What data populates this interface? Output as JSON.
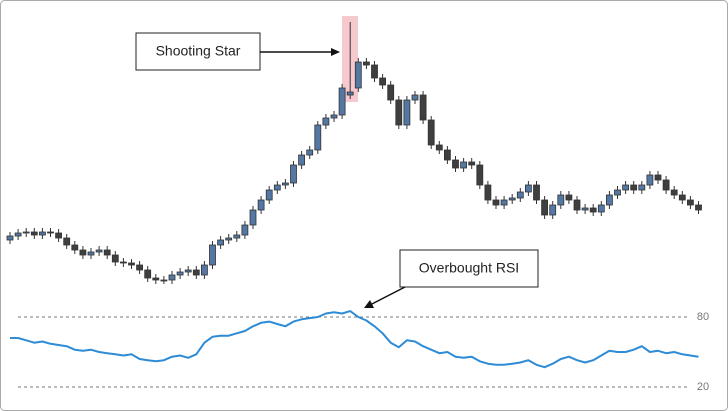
{
  "chart_data": [
    {
      "type": "candlestick",
      "annotation": "Shooting Star",
      "up_color": "#5478a3",
      "down_color": "#3f3f3f",
      "ylim": [
        0,
        300
      ],
      "open": [
        60,
        64,
        67,
        68,
        65,
        68,
        67,
        62,
        55,
        50,
        45,
        48,
        50,
        45,
        38,
        37,
        35,
        30,
        22,
        20,
        20,
        25,
        28,
        30,
        25,
        35,
        55,
        60,
        62,
        65,
        75,
        90,
        100,
        110,
        115,
        117,
        135,
        145,
        150,
        175,
        182,
        185,
        205,
        212,
        238,
        235,
        222,
        215,
        200,
        175,
        200,
        205,
        180,
        155,
        150,
        140,
        132,
        138,
        135,
        115,
        100,
        95,
        100,
        102,
        108,
        115,
        100,
        85,
        95,
        105,
        100,
        90,
        92,
        88,
        95,
        105,
        110,
        115,
        110,
        115,
        125,
        120,
        110,
        105,
        100,
        95
      ],
      "high": [
        68,
        71,
        72,
        72,
        72,
        72,
        71,
        66,
        59,
        54,
        52,
        54,
        54,
        49,
        42,
        41,
        39,
        34,
        26,
        24,
        29,
        32,
        34,
        34,
        39,
        59,
        64,
        66,
        69,
        79,
        94,
        104,
        114,
        119,
        121,
        139,
        149,
        154,
        179,
        186,
        189,
        216,
        278,
        242,
        242,
        239,
        226,
        219,
        204,
        204,
        209,
        209,
        184,
        159,
        154,
        144,
        142,
        142,
        139,
        119,
        104,
        104,
        106,
        112,
        119,
        119,
        104,
        99,
        109,
        109,
        104,
        96,
        96,
        99,
        109,
        114,
        119,
        119,
        119,
        129,
        129,
        124,
        114,
        109,
        104,
        99
      ],
      "low": [
        56,
        60,
        63,
        61,
        61,
        63,
        58,
        51,
        46,
        41,
        41,
        44,
        41,
        34,
        33,
        31,
        26,
        18,
        16,
        16,
        16,
        21,
        24,
        21,
        21,
        31,
        51,
        56,
        58,
        61,
        71,
        86,
        96,
        106,
        111,
        113,
        131,
        141,
        146,
        171,
        178,
        181,
        201,
        208,
        231,
        218,
        211,
        196,
        171,
        171,
        196,
        176,
        151,
        146,
        136,
        128,
        128,
        131,
        111,
        96,
        91,
        91,
        96,
        98,
        104,
        96,
        81,
        81,
        91,
        96,
        86,
        86,
        84,
        84,
        91,
        101,
        106,
        106,
        106,
        111,
        116,
        106,
        101,
        96,
        91,
        86
      ],
      "close": [
        64,
        67,
        68,
        65,
        68,
        67,
        62,
        55,
        50,
        45,
        48,
        50,
        45,
        38,
        37,
        35,
        30,
        22,
        20,
        20,
        25,
        28,
        30,
        25,
        35,
        55,
        60,
        62,
        65,
        75,
        90,
        100,
        110,
        115,
        117,
        135,
        145,
        150,
        175,
        182,
        185,
        212,
        208,
        238,
        235,
        222,
        215,
        200,
        175,
        200,
        205,
        180,
        155,
        150,
        140,
        132,
        138,
        135,
        115,
        100,
        95,
        100,
        102,
        108,
        115,
        100,
        85,
        95,
        105,
        100,
        90,
        92,
        88,
        95,
        105,
        110,
        115,
        110,
        115,
        125,
        120,
        110,
        105,
        100,
        95,
        90
      ]
    },
    {
      "type": "line",
      "annotation": "Overbought RSI",
      "color": "#2e8bd6",
      "ylim": [
        10,
        90
      ],
      "yticks": [
        80,
        20
      ],
      "values": [
        62,
        62,
        60,
        58,
        59,
        57,
        56,
        55,
        52,
        51,
        52,
        50,
        49,
        48,
        47,
        48,
        44,
        43,
        42,
        43,
        46,
        47,
        45,
        48,
        58,
        63,
        64,
        64,
        66,
        68,
        72,
        75,
        76,
        74,
        72,
        76,
        78,
        79,
        80,
        83,
        84,
        83,
        85,
        80,
        77,
        72,
        66,
        58,
        54,
        60,
        59,
        55,
        52,
        49,
        50,
        46,
        45,
        46,
        42,
        40,
        39,
        39,
        40,
        41,
        43,
        39,
        37,
        40,
        44,
        46,
        43,
        41,
        43,
        47,
        51,
        50,
        50,
        52,
        55,
        50,
        51,
        49,
        50,
        48,
        47,
        46
      ]
    }
  ]
}
